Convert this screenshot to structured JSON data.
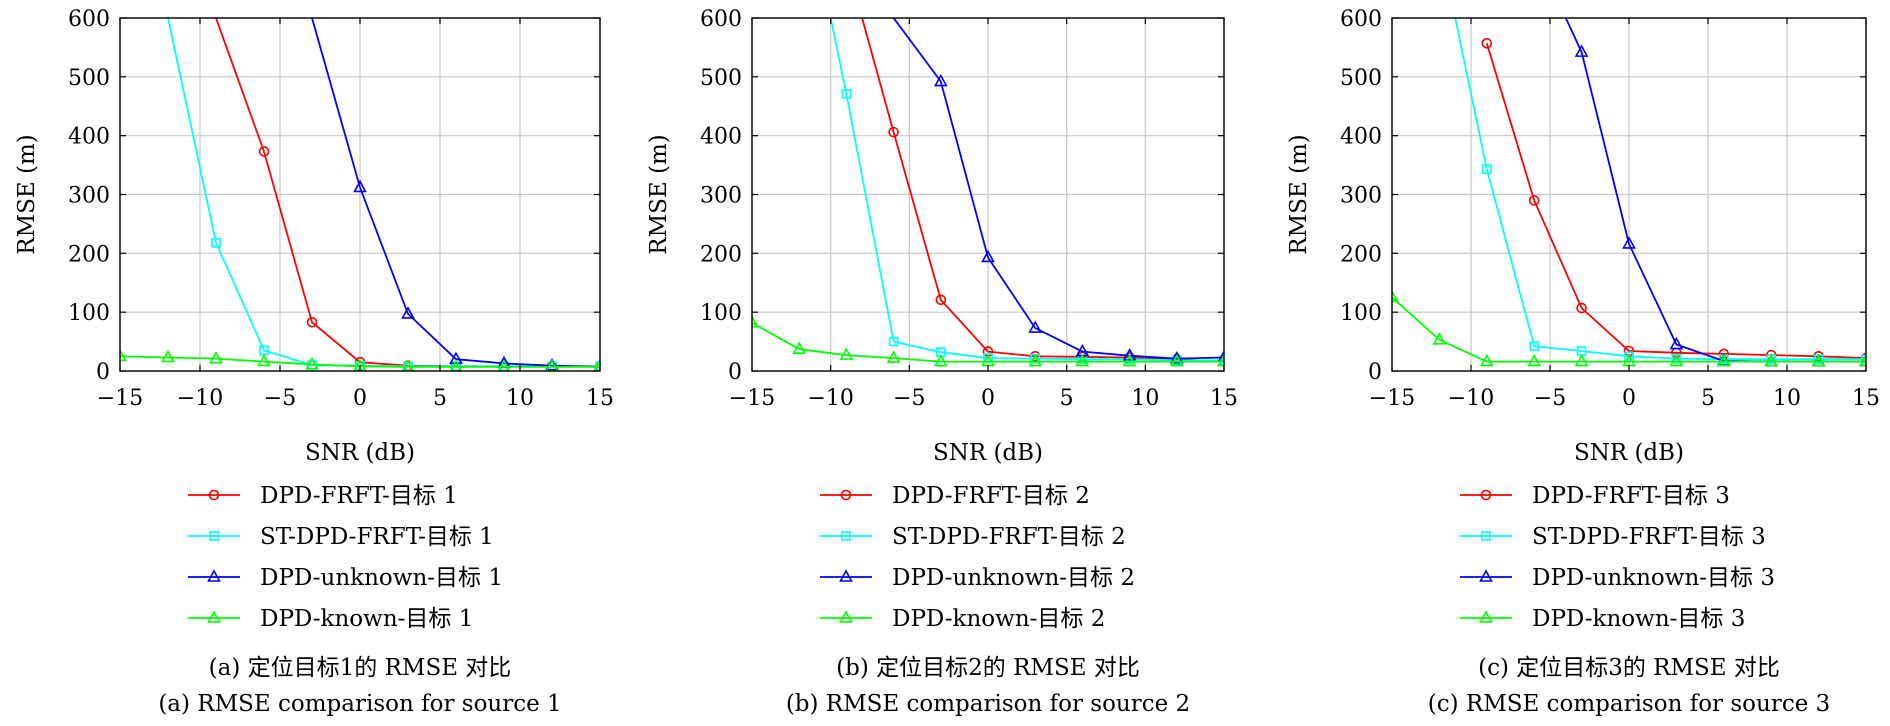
{
  "figure": {
    "series_colors": [
      "#ff0000",
      "#00ffff",
      "#0000ff",
      "#00ff00"
    ],
    "series_markers": [
      "circle",
      "square",
      "triangle",
      "triangle"
    ]
  },
  "chart_data": [
    {
      "type": "line",
      "xlabel": "SNR (dB)",
      "ylabel": "RMSE (m)",
      "xlim": [
        -15,
        15
      ],
      "ylim": [
        0,
        600
      ],
      "xticks": [
        -15,
        -10,
        -5,
        0,
        5,
        10,
        15
      ],
      "yticks": [
        0,
        100,
        200,
        300,
        400,
        500,
        600
      ],
      "grid": true,
      "legend_position": "below",
      "caption_cn": "(a) 定位目标1的 RMSE 对比",
      "caption_en": "(a) RMSE comparison for source 1",
      "series": [
        {
          "name": "DPD-FRFT-目标 1",
          "x": [
            -9,
            -6,
            -3,
            0,
            3,
            6,
            9,
            12,
            15
          ],
          "y": [
            600,
            373,
            83,
            15,
            9,
            8,
            8,
            8,
            8
          ]
        },
        {
          "name": "ST-DPD-FRFT-目标 1",
          "x": [
            -12,
            -9,
            -6,
            -3,
            0,
            3,
            6,
            9,
            12,
            15
          ],
          "y": [
            600,
            218,
            35,
            10,
            9,
            8,
            8,
            8,
            8,
            8
          ]
        },
        {
          "name": "DPD-unknown-目标 1",
          "x": [
            -3,
            0,
            3,
            6,
            9,
            12,
            15
          ],
          "y": [
            600,
            312,
            97,
            20,
            13,
            9,
            7
          ]
        },
        {
          "name": "DPD-known-目标 1",
          "x": [
            -15,
            -12,
            -9,
            -6,
            -3,
            0,
            3,
            6,
            9,
            12,
            15
          ],
          "y": [
            25,
            23,
            21,
            16,
            11,
            8,
            7,
            7,
            7,
            7,
            7
          ]
        }
      ]
    },
    {
      "type": "line",
      "xlabel": "SNR (dB)",
      "ylabel": "RMSE (m)",
      "xlim": [
        -15,
        15
      ],
      "ylim": [
        0,
        600
      ],
      "xticks": [
        -15,
        -10,
        -5,
        0,
        5,
        10,
        15
      ],
      "yticks": [
        0,
        100,
        200,
        300,
        400,
        500,
        600
      ],
      "grid": true,
      "legend_position": "below",
      "caption_cn": "(b) 定位目标2的 RMSE 对比",
      "caption_en": "(b) RMSE comparison for source 2",
      "series": [
        {
          "name": "DPD-FRFT-目标 2",
          "x": [
            -8,
            -6,
            -3,
            0,
            3,
            6,
            9,
            12,
            15
          ],
          "y": [
            600,
            406,
            121,
            33,
            25,
            24,
            23,
            20,
            16
          ]
        },
        {
          "name": "ST-DPD-FRFT-目标 2",
          "x": [
            -10,
            -9,
            -6,
            -3,
            0,
            3,
            6,
            9,
            12,
            15
          ],
          "y": [
            600,
            471,
            50,
            32,
            22,
            21,
            20,
            20,
            18,
            18
          ]
        },
        {
          "name": "DPD-unknown-目标 2",
          "x": [
            -6,
            -3,
            0,
            3,
            6,
            9,
            12,
            15
          ],
          "y": [
            600,
            492,
            193,
            73,
            33,
            26,
            21,
            23
          ]
        },
        {
          "name": "DPD-known-目标 2",
          "x": [
            -15,
            -12,
            -9,
            -6,
            -3,
            0,
            3,
            6,
            9,
            12,
            15
          ],
          "y": [
            82,
            37,
            27,
            22,
            16,
            16,
            16,
            16,
            16,
            16,
            16
          ]
        }
      ]
    },
    {
      "type": "line",
      "xlabel": "SNR (dB)",
      "ylabel": "RMSE (m)",
      "xlim": [
        -15,
        15
      ],
      "ylim": [
        0,
        600
      ],
      "xticks": [
        -15,
        -10,
        -5,
        0,
        5,
        10,
        15
      ],
      "yticks": [
        0,
        100,
        200,
        300,
        400,
        500,
        600
      ],
      "grid": true,
      "legend_position": "below",
      "caption_cn": "(c) 定位目标3的 RMSE 对比",
      "caption_en": "(c) RMSE comparison for source 3",
      "series": [
        {
          "name": "DPD-FRFT-目标 3",
          "x": [
            -9,
            -6,
            -3,
            0,
            3,
            6,
            9,
            12,
            15
          ],
          "y": [
            557,
            290,
            107,
            34,
            31,
            29,
            27,
            25,
            22
          ]
        },
        {
          "name": "ST-DPD-FRFT-目标 3",
          "x": [
            -11,
            -9,
            -6,
            -3,
            0,
            3,
            6,
            9,
            12,
            15
          ],
          "y": [
            600,
            343,
            42,
            34,
            25,
            21,
            20,
            20,
            20,
            20
          ]
        },
        {
          "name": "DPD-unknown-目标 3",
          "x": [
            -4,
            -3,
            0,
            3,
            6,
            9,
            12,
            15
          ],
          "y": [
            600,
            542,
            216,
            45,
            17,
            16,
            16,
            16
          ]
        },
        {
          "name": "DPD-known-目标 3",
          "x": [
            -15,
            -12,
            -9,
            -6,
            -3,
            0,
            3,
            6,
            9,
            12,
            15
          ],
          "y": [
            125,
            53,
            16,
            16,
            16,
            16,
            16,
            16,
            16,
            16,
            16
          ]
        }
      ]
    }
  ]
}
